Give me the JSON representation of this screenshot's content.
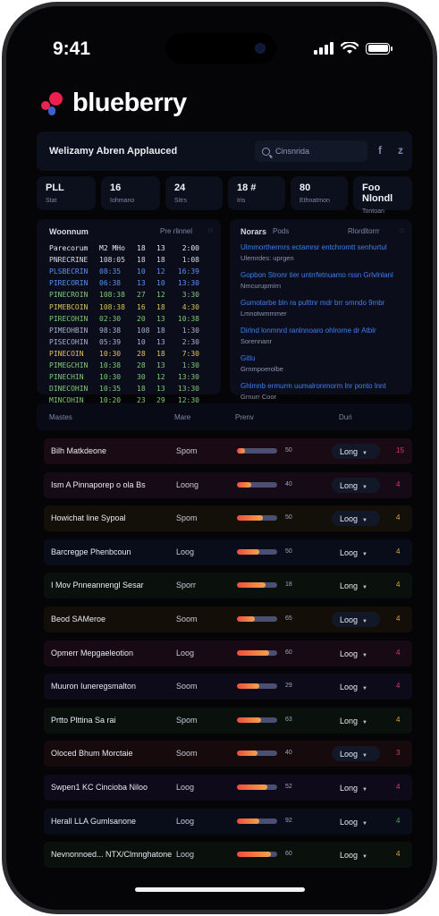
{
  "status": {
    "time": "9:41"
  },
  "brand": {
    "name": "blueberry"
  },
  "header": {
    "title": "Welizamy Abren Applauced",
    "search_placeholder": "Cinsnrida",
    "icon_a": "f",
    "icon_b": "z"
  },
  "stats": [
    {
      "value": "PLL",
      "label": "Stat"
    },
    {
      "value": "16",
      "label": "Iohmano"
    },
    {
      "value": "24",
      "label": "Sitrs"
    },
    {
      "value": "18 #",
      "label": "Iris"
    },
    {
      "value": "80",
      "label": "Ethnatmon"
    },
    {
      "value": "Foo Nlondl",
      "label": "Tontoan"
    }
  ],
  "schedule": {
    "title": "Woonnum",
    "sub": "Pre rlinnel",
    "rows": [
      {
        "cells": [
          "Parecorum",
          "M2 MHo",
          "18",
          "13",
          "2:00"
        ],
        "color": "#e8e9ef"
      },
      {
        "cells": [
          "PNRECRINE",
          "108:05",
          "18",
          "18",
          "1:08"
        ],
        "color": "#d9dbe6"
      },
      {
        "cells": [
          "PLSBECRIN",
          "08:35",
          "10",
          "12",
          "16:39"
        ],
        "color": "#5c8ef2"
      },
      {
        "cells": [
          "PIRECORIN",
          "06:38",
          "13",
          "10",
          "13:30"
        ],
        "color": "#5c8ef2"
      },
      {
        "cells": [
          "PINECROIN",
          "108:38",
          "27",
          "12",
          "3:30"
        ],
        "color": "#7fc97a"
      },
      {
        "cells": [
          "PIMEBCOIN",
          "108:38",
          "16",
          "18",
          "4:30"
        ],
        "color": "#d8c25c"
      },
      {
        "cells": [
          "PIRECOHIN",
          "02:30",
          "20",
          "13",
          "10:38"
        ],
        "color": "#7fc97a"
      },
      {
        "cells": [
          "PIMEOHBIN",
          "98:38",
          "108",
          "18",
          "1:30"
        ],
        "color": "#a9b2cc"
      },
      {
        "cells": [
          "PISECOHIN",
          "05:39",
          "10",
          "13",
          "2:30"
        ],
        "color": "#a9b2cc"
      },
      {
        "cells": [
          "PINECOIN",
          "10:30",
          "28",
          "18",
          "7:30"
        ],
        "color": "#e1c15c"
      },
      {
        "cells": [
          "PIMEGCHIN",
          "10:38",
          "28",
          "13",
          "1:30"
        ],
        "color": "#7fc97a"
      },
      {
        "cells": [
          "PINECHIN",
          "10:30",
          "30",
          "12",
          "13:30"
        ],
        "color": "#7fc97a"
      },
      {
        "cells": [
          "DINECOHIN",
          "10:35",
          "18",
          "13",
          "13:30"
        ],
        "color": "#7fc97a"
      },
      {
        "cells": [
          "MINCOHIN",
          "10:20",
          "23",
          "29",
          "12:30"
        ],
        "color": "#7fc97a"
      }
    ]
  },
  "news": {
    "title": "Norars",
    "sub": "Pods",
    "right": "Rlordltorrr",
    "items": [
      {
        "link": "Ulmmorthermrs ectamrsr entchromtt senhurtul",
        "meta": "Ulemrdes: uprgen"
      },
      {
        "link": "Gopbon Stronr tier untrrfetnuamo rssn Grlvlnlanl",
        "meta": "Nmcurupmirn"
      },
      {
        "link": "Gumotarbe bln ra pulttnr mdr brr smndo 9mbr",
        "meta": "Lmnotwmmmer"
      },
      {
        "link": "Dirlnd lonmnrd ranlnnoaro ohlrorne dr Atblr",
        "meta": "Sorennanr"
      },
      {
        "link": "Gitlu",
        "meta": "Grnmpoerolbe"
      },
      {
        "link": "Ghlmnb ermurm uumalronrnorm lnr ponto lnnt",
        "meta": "Grnurr Coor"
      }
    ]
  },
  "table": {
    "columns": [
      "Mastes",
      "Mare",
      "Prenv",
      "Duri"
    ],
    "rows": [
      {
        "name": "Bilh Matkdeone",
        "mode": "Spom",
        "progress": 0.2,
        "pct": "50",
        "duration": "Long",
        "pill": true,
        "flag": "15",
        "flag_color": "#d03a7a",
        "bg": "#1a0a14"
      },
      {
        "name": "Ism A Pinnaporep o ola Bs",
        "mode": "Loong",
        "progress": 0.35,
        "pct": "40",
        "duration": "Long",
        "pill": true,
        "flag": "4",
        "flag_color": "#d03a7a",
        "bg": "#170a17"
      },
      {
        "name": "Howichat line Sypoal",
        "mode": "Spom",
        "progress": 0.65,
        "pct": "50",
        "duration": "Loog",
        "pill": true,
        "flag": "4",
        "flag_color": "#e0a43a",
        "bg": "#130f09"
      },
      {
        "name": "Barcregpe Phenbcoun",
        "mode": "Loog",
        "progress": 0.55,
        "pct": "50",
        "duration": "Loog",
        "pill": false,
        "flag": "4",
        "flag_color": "#e0a43a",
        "bg": "#090d1a"
      },
      {
        "name": "I Mov Pnneannengl Sesar",
        "mode": "Sporr",
        "progress": 0.7,
        "pct": "18",
        "duration": "Long",
        "pill": false,
        "flag": "4",
        "flag_color": "#e0a43a",
        "bg": "#0a110d"
      },
      {
        "name": "Beod SAMeroe",
        "mode": "Soom",
        "progress": 0.45,
        "pct": "65",
        "duration": "Loog",
        "pill": true,
        "flag": "4",
        "flag_color": "#e0a43a",
        "bg": "#140e08"
      },
      {
        "name": "Opmerr Mepgaeleotion",
        "mode": "Loog",
        "progress": 0.8,
        "pct": "60",
        "duration": "Loog",
        "pill": false,
        "flag": "4",
        "flag_color": "#d03a7a",
        "bg": "#170a14"
      },
      {
        "name": "Muuron Iuneregsmalton",
        "mode": "Soom",
        "progress": 0.55,
        "pct": "29",
        "duration": "Loog",
        "pill": false,
        "flag": "4",
        "flag_color": "#d03a7a",
        "bg": "#0d0a1a"
      },
      {
        "name": "Prtto Plttina Sa rai",
        "mode": "Spom",
        "progress": 0.6,
        "pct": "63",
        "duration": "Long",
        "pill": false,
        "flag": "4",
        "flag_color": "#e0a43a",
        "bg": "#0a110c"
      },
      {
        "name": "Oloced Bhum Morctaie",
        "mode": "Soom",
        "progress": 0.5,
        "pct": "40",
        "duration": "Loog",
        "pill": true,
        "flag": "3",
        "flag_color": "#d03a7a",
        "bg": "#170a0c"
      },
      {
        "name": "Swpen1 KC Cincioba Niloo",
        "mode": "Loog",
        "progress": 0.75,
        "pct": "52",
        "duration": "Long",
        "pill": false,
        "flag": "4",
        "flag_color": "#d03a7a",
        "bg": "#0e0a19"
      },
      {
        "name": "Herall LLA Gumlsanone",
        "mode": "Loog",
        "progress": 0.55,
        "pct": "92",
        "duration": "Loog",
        "pill": false,
        "flag": "4",
        "flag_color": "#5aa35a",
        "bg": "#090d1a"
      },
      {
        "name": "Nevnonnoed... NTX/Clmnghatone",
        "mode": "Loog",
        "progress": 0.85,
        "pct": "60",
        "duration": "Loog",
        "pill": false,
        "flag": "4",
        "flag_color": "#e0a43a",
        "bg": "#0a110d"
      }
    ]
  }
}
